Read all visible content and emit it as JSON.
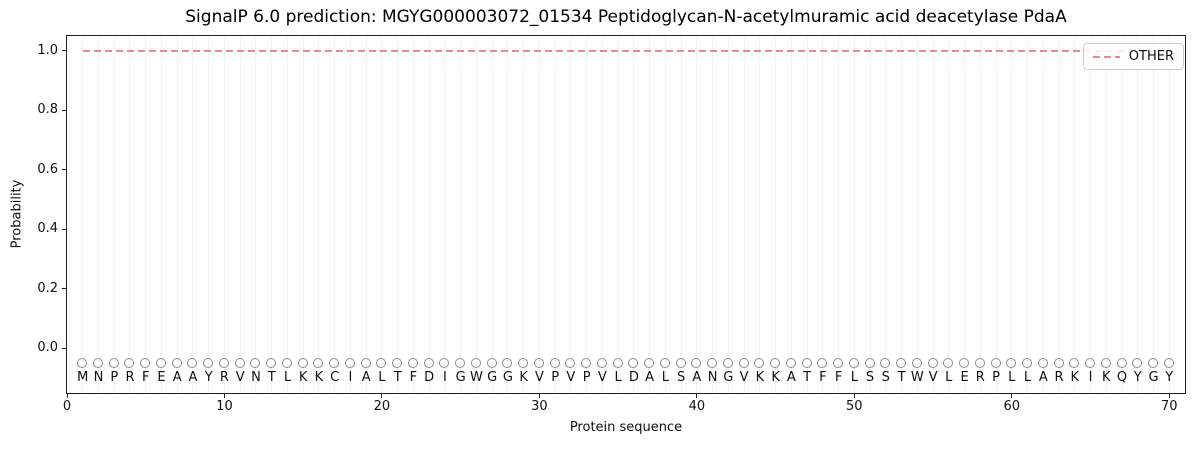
{
  "figure_title": "SignalP 6.0 prediction: MGYG000003072_01534 Peptidoglycan-N-acetylmuramic acid deacetylase PdaA",
  "chart_data": {
    "type": "line",
    "title": "SignalP 6.0 prediction: MGYG000003072_01534 Peptidoglycan-N-acetylmuramic acid deacetylase PdaA",
    "xlabel": "Protein sequence",
    "ylabel": "Probability",
    "xlim": [
      0,
      71
    ],
    "ylim": [
      -0.15,
      1.05
    ],
    "x_ticks": [
      0,
      10,
      20,
      30,
      40,
      50,
      60,
      70
    ],
    "y_ticks": [
      0.0,
      0.2,
      0.4,
      0.6,
      0.8,
      1.0
    ],
    "grid": {
      "vertical_line_per_residue": true,
      "color": "#f0f0f0"
    },
    "sequence": "MNPRFEAAYRVNTLKKCIALTFDIGWGGKVPVPVLDALSANGVKKATFFLSSTWVLERPLLARKIKQYGY",
    "sequence_length": 70,
    "residue_marker": {
      "shape": "open-circle",
      "color": "#8c8c8c",
      "y_value": -0.05
    },
    "series": [
      {
        "name": "OTHER",
        "linestyle": "dashed",
        "color": "#ee8888",
        "x_start": 1,
        "x_end": 70,
        "y_value": 1.0
      }
    ],
    "legend": {
      "position": "upper-right",
      "entries": [
        {
          "label": "OTHER",
          "color": "#ee8888",
          "linestyle": "dashed"
        }
      ]
    }
  }
}
